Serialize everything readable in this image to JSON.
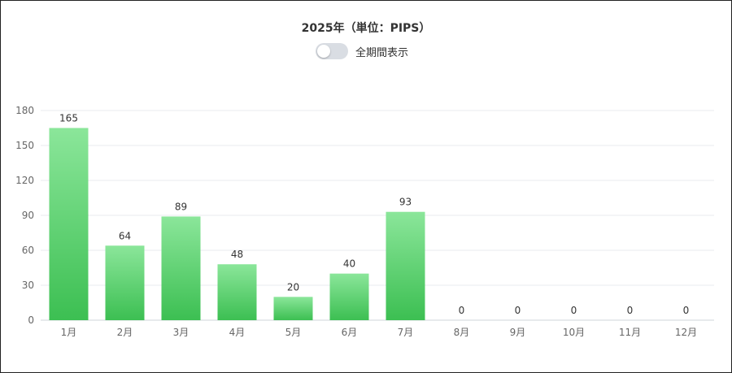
{
  "chart_title": "2025年（単位：PIPS）",
  "toggle": {
    "label": "全期間表示",
    "on": false
  },
  "colors": {
    "bar_top": "#8be69a",
    "bar_bottom": "#3cbf52",
    "grid": "#e8ebef"
  },
  "chart_data": {
    "type": "bar",
    "title": "2025年（単位：PIPS）",
    "categories": [
      "1月",
      "2月",
      "3月",
      "4月",
      "5月",
      "6月",
      "7月",
      "8月",
      "9月",
      "10月",
      "11月",
      "12月"
    ],
    "values": [
      165,
      64,
      89,
      48,
      20,
      40,
      93,
      0,
      0,
      0,
      0,
      0
    ],
    "ylim": [
      0,
      180
    ],
    "yticks": [
      0,
      30,
      60,
      90,
      120,
      150,
      180
    ],
    "grid": true,
    "legend": "none"
  }
}
